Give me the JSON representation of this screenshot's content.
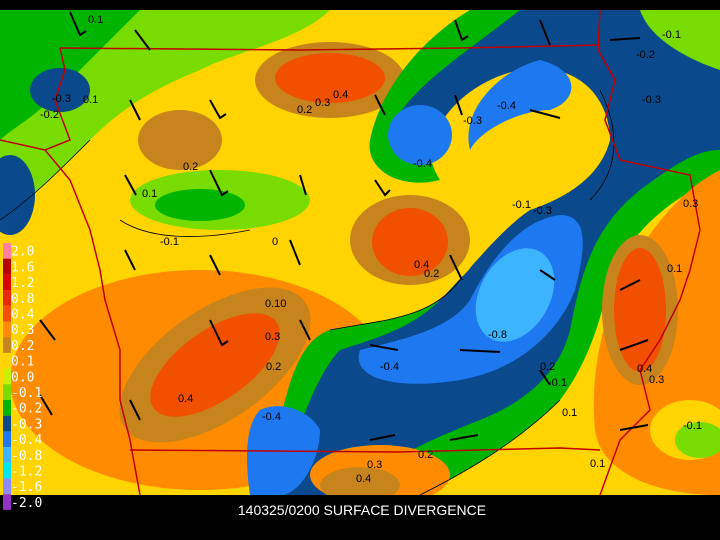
{
  "title": "140325/0200 SURFACE DIVERGENCE",
  "legend": [
    {
      "label": "2.0",
      "color": "#ff7f9f"
    },
    {
      "label": "1.6",
      "color": "#b40000"
    },
    {
      "label": "1.2",
      "color": "#d80000"
    },
    {
      "label": "0.8",
      "color": "#e82800"
    },
    {
      "label": "0.4",
      "color": "#f05000"
    },
    {
      "label": "0.3",
      "color": "#ff8c00"
    },
    {
      "label": "0.2",
      "color": "#c8841c"
    },
    {
      "label": "0.1",
      "color": "#ffd400"
    },
    {
      "label": "0.0",
      "color": "#c8f000"
    },
    {
      "label": "-0.1",
      "color": "#78dc00"
    },
    {
      "label": "-0.2",
      "color": "#00b400"
    },
    {
      "label": "-0.3",
      "color": "#0a4a8c"
    },
    {
      "label": "-0.4",
      "color": "#1e78f0"
    },
    {
      "label": "-0.8",
      "color": "#3cb4ff"
    },
    {
      "label": "-1.2",
      "color": "#00e6f0"
    },
    {
      "label": "-1.6",
      "color": "#8c8cff"
    },
    {
      "label": "-2.0",
      "color": "#9632c8"
    }
  ],
  "contour_labels": [
    "0.1",
    "-0.3",
    "0.1",
    "-0.2",
    "0.3",
    "0.4",
    "0.2",
    "-0.4",
    "-0.3",
    "-0.4",
    "0.2",
    "0.1",
    "-0.1",
    "0",
    "0.4",
    "0.2",
    "-0.1",
    "-0.3",
    "-0.8",
    "0.10",
    "0.3",
    "0.2",
    "-0.4",
    "0.4",
    "-0.4",
    "0.3",
    "0.4",
    "0.2",
    "0.4",
    "0.3",
    "0.1",
    "-0.1",
    "0.2",
    "0.1",
    "-0.1",
    "-0.2",
    "-0.3",
    "0.3",
    "0.1",
    "-0.1"
  ]
}
